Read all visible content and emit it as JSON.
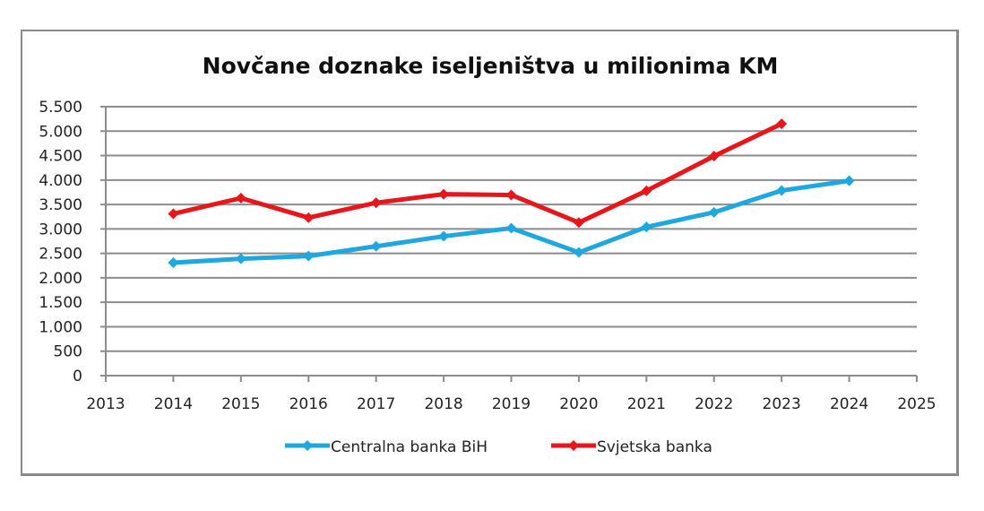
{
  "chart_data": {
    "type": "line",
    "title": "Novčane doznake iseljeništva u milionima KM",
    "xlabel": "",
    "ylabel": "",
    "x_ticks": [
      2013,
      2014,
      2015,
      2016,
      2017,
      2018,
      2019,
      2020,
      2021,
      2022,
      2023,
      2024,
      2025
    ],
    "y_ticks": [
      "0",
      "500",
      "1.000",
      "1.500",
      "2.000",
      "2.500",
      "3.000",
      "3.500",
      "4.000",
      "4.500",
      "5.000",
      "5.500"
    ],
    "xlim": [
      2013,
      2025
    ],
    "ylim": [
      0,
      5500
    ],
    "grid": true,
    "legend_position": "bottom",
    "series": [
      {
        "name": "Centralna banka BiH",
        "color": "#1FA8DF",
        "marker": "diamond",
        "x": [
          2014,
          2015,
          2016,
          2017,
          2018,
          2019,
          2020,
          2021,
          2022,
          2023,
          2024
        ],
        "values": [
          2310,
          2390,
          2445,
          2645,
          2850,
          3015,
          2520,
          3040,
          3340,
          3785,
          3985
        ]
      },
      {
        "name": "Svjetska banka",
        "color": "#E8161B",
        "marker": "diamond",
        "x": [
          2014,
          2015,
          2016,
          2017,
          2018,
          2019,
          2020,
          2021,
          2022,
          2023
        ],
        "values": [
          3310,
          3630,
          3230,
          3535,
          3710,
          3695,
          3130,
          3780,
          4490,
          5150
        ]
      }
    ]
  }
}
